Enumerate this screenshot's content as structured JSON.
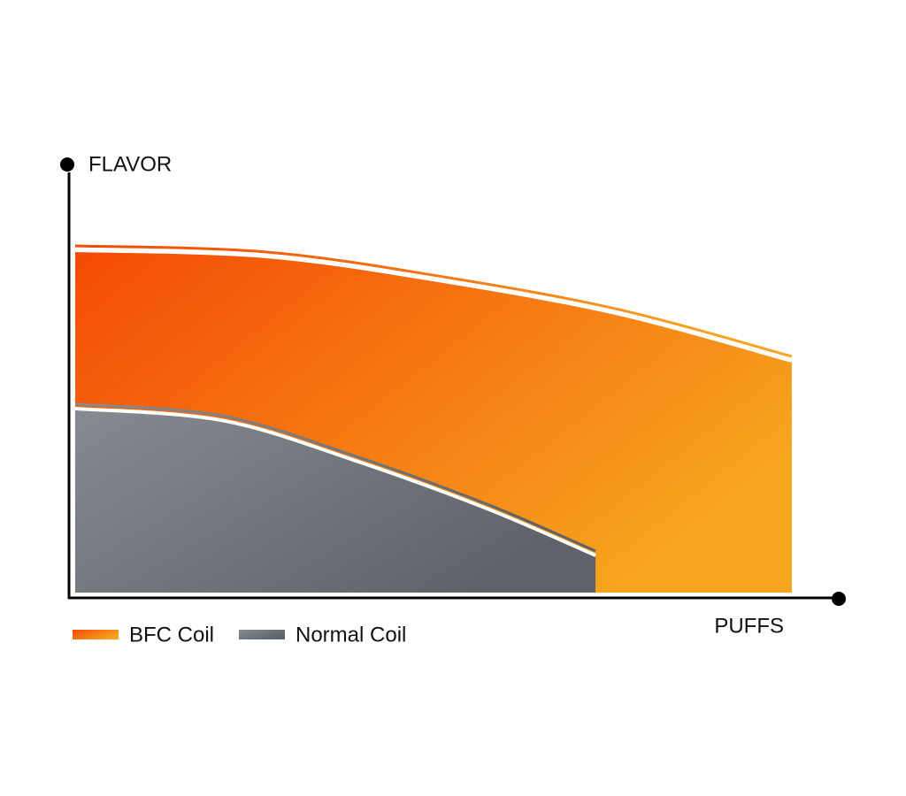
{
  "chart_data": {
    "type": "area",
    "y_label": "FLAVOR",
    "x_label": "PUFFS",
    "xlim": [
      0,
      100
    ],
    "ylim": [
      0,
      100
    ],
    "series": [
      {
        "name": "BFC Coil",
        "gradient": [
          "#f44a05",
          "#f7a51f"
        ],
        "x": [
          0.8,
          25.5,
          48.5,
          71.5,
          93.9
        ],
        "values": [
          80.2,
          78.8,
          73.1,
          65.5,
          54.7
        ]
      },
      {
        "name": "Normal Coil",
        "gradient": [
          "#858b91",
          "#5d6368"
        ],
        "x": [
          0.8,
          19.8,
          37.0,
          54.3,
          68.4
        ],
        "values": [
          43.7,
          41.0,
          31.8,
          20.6,
          9.8
        ]
      }
    ]
  }
}
